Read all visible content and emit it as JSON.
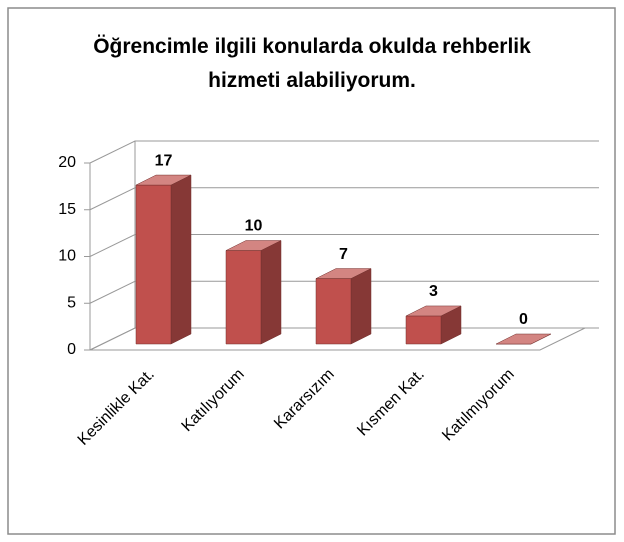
{
  "chart_data": {
    "type": "bar3d",
    "title": "Öğrencimle ilgili konularda okulda rehberlik hizmeti alabiliyorum.",
    "categories": [
      "Kesinlikle Kat.",
      "Katılıyorum",
      "Kararsızım",
      "Kısmen Kat.",
      "Katılmıyorum"
    ],
    "values": [
      17,
      10,
      7,
      3,
      0
    ],
    "color": "#c0504d",
    "ylim": [
      0,
      20
    ],
    "yticks": [
      0,
      5,
      10,
      15,
      20
    ],
    "grid": true
  }
}
